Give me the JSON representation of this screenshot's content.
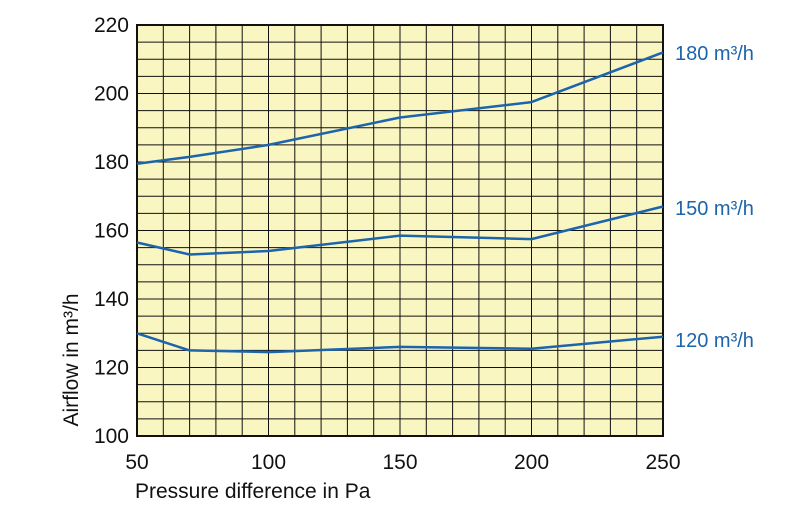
{
  "chart_data": {
    "type": "line",
    "title": "",
    "xlabel": "Pressure difference in Pa",
    "ylabel": "Airflow in m³/h",
    "xlim": [
      50,
      250
    ],
    "ylim": [
      100,
      220
    ],
    "x_ticks": [
      50,
      100,
      150,
      200,
      250
    ],
    "y_ticks": [
      100,
      120,
      140,
      160,
      180,
      200,
      220
    ],
    "x_ticks_text": [
      "50",
      "100",
      "150",
      "200",
      "250"
    ],
    "y_ticks_text": [
      "100",
      "120",
      "140",
      "160",
      "180",
      "200",
      "220"
    ],
    "grid": true,
    "grid_x_step": 10,
    "grid_y_step": 5,
    "background_color": "#faf6c2",
    "line_color": "#1c64ac",
    "series": [
      {
        "name": "180 m³/h",
        "x": [
          50,
          70,
          100,
          150,
          200,
          250
        ],
        "y": [
          179.5,
          181.5,
          185,
          193,
          197.5,
          212
        ]
      },
      {
        "name": "150 m³/h",
        "x": [
          50,
          70,
          100,
          150,
          200,
          250
        ],
        "y": [
          156.5,
          153,
          154,
          158.5,
          157.5,
          167
        ]
      },
      {
        "name": "120 m³/h",
        "x": [
          50,
          70,
          100,
          150,
          200,
          250
        ],
        "y": [
          130,
          125,
          124.5,
          126,
          125.5,
          129
        ]
      }
    ]
  }
}
